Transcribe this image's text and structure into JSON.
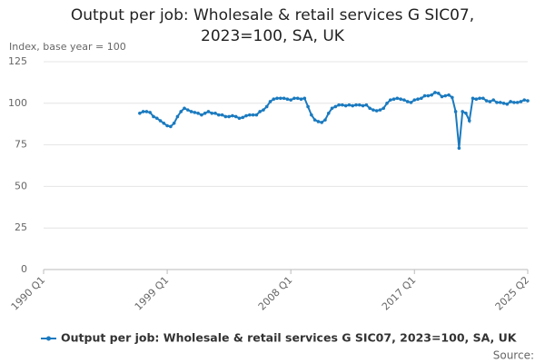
{
  "chart_data": {
    "type": "line",
    "title": "Output per job: Wholesale & retail services G SIC07, 2023=100, SA, UK",
    "y_label": "Index, base year = 100",
    "source": "Source:",
    "categories": [
      "1990 Q1",
      null,
      null,
      null,
      null,
      null,
      null,
      null,
      null,
      null,
      null,
      null,
      null,
      null,
      null,
      null,
      null,
      null,
      null,
      null,
      null,
      null,
      null,
      null,
      null,
      null,
      null,
      null,
      null,
      null,
      null,
      null,
      null,
      null,
      null,
      null,
      "1999 Q1",
      null,
      null,
      null,
      null,
      null,
      null,
      null,
      null,
      null,
      null,
      null,
      null,
      null,
      null,
      null,
      null,
      null,
      null,
      null,
      null,
      null,
      null,
      null,
      null,
      null,
      null,
      null,
      null,
      null,
      null,
      null,
      null,
      null,
      null,
      null,
      "2008 Q1",
      null,
      null,
      null,
      null,
      null,
      null,
      null,
      null,
      null,
      null,
      null,
      null,
      null,
      null,
      null,
      null,
      null,
      null,
      null,
      null,
      null,
      null,
      null,
      null,
      null,
      null,
      null,
      null,
      null,
      null,
      null,
      null,
      null,
      null,
      null,
      "2017 Q1",
      null,
      null,
      null,
      null,
      null,
      null,
      null,
      null,
      null,
      null,
      null,
      null,
      null,
      null,
      null,
      null,
      null,
      null,
      null,
      null,
      null,
      null,
      null,
      null,
      null,
      null,
      null,
      null,
      null,
      null,
      null,
      null,
      "2025 Q2"
    ],
    "series": [
      {
        "name": "Output per job: Wholesale & retail services G SIC07, 2023=100, SA, UK",
        "color": "#1a7abf",
        "values": [
          null,
          null,
          null,
          null,
          null,
          null,
          null,
          null,
          null,
          null,
          null,
          null,
          null,
          null,
          null,
          null,
          null,
          null,
          null,
          null,
          null,
          null,
          null,
          null,
          null,
          null,
          null,
          null,
          94,
          95,
          95,
          94.5,
          92,
          91,
          89.5,
          88,
          86.5,
          86,
          88,
          92,
          95,
          97,
          96,
          95,
          94.5,
          94,
          93,
          94,
          95,
          94,
          94,
          93,
          93,
          92,
          92,
          92.5,
          92,
          91,
          91.5,
          92.5,
          93,
          93,
          93,
          95,
          96,
          98,
          101,
          102.5,
          103,
          103,
          103,
          102.5,
          102,
          103,
          103,
          102.5,
          103,
          98,
          93,
          90,
          89,
          88.5,
          90,
          94,
          97,
          98,
          99,
          99,
          98.5,
          99,
          98.5,
          99,
          99,
          98.5,
          99,
          97,
          96,
          95.5,
          96,
          97,
          100,
          102,
          102.5,
          103,
          102.5,
          102,
          101,
          100.5,
          102,
          102.5,
          103,
          104.5,
          104.5,
          105,
          106.5,
          106,
          104,
          104.5,
          105,
          103.5,
          95,
          73,
          95,
          94,
          89.5,
          103,
          102.5,
          103,
          103,
          101.5,
          101,
          102,
          100.5,
          100.5,
          100,
          99.5,
          101,
          100.5,
          100.5,
          101,
          102,
          101.5
        ]
      }
    ],
    "ylim": [
      0,
      125
    ],
    "yticks": [
      0,
      25,
      50,
      75,
      100,
      125
    ],
    "grid": true
  }
}
